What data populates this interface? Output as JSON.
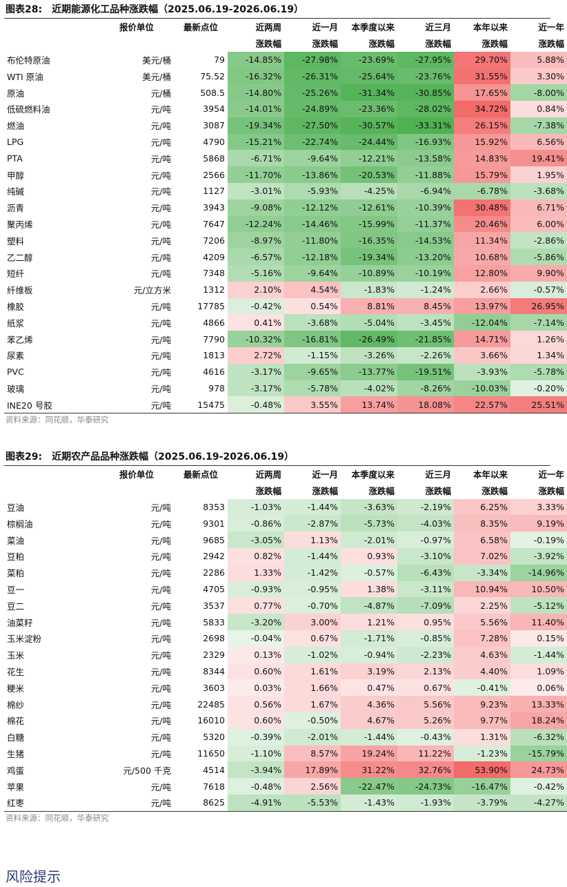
{
  "energy": {
    "label": "图表28:",
    "title": "近期能源化工品种涨跌幅（2025.06.19-2026.06.19）",
    "headers": {
      "unit": "报价单位",
      "point": "最新点位",
      "cols": [
        {
          "l1": "近两周",
          "l2": "涨跌幅"
        },
        {
          "l1": "近一月",
          "l2": "涨跌幅"
        },
        {
          "l1": "本季度以来",
          "l2": "涨跌幅"
        },
        {
          "l1": "近三月",
          "l2": "涨跌幅"
        },
        {
          "l1": "本年以来",
          "l2": "涨跌幅"
        },
        {
          "l1": "近一年",
          "l2": "涨跌幅"
        }
      ]
    },
    "rows": [
      {
        "name": "布伦特原油",
        "unit": "美元/桶",
        "point": "79",
        "v": [
          "-14.85%",
          "-27.98%",
          "-23.69%",
          "-27.95%",
          "29.70%",
          "5.88%"
        ]
      },
      {
        "name": "WTI 原油",
        "unit": "美元/桶",
        "point": "75.52",
        "v": [
          "-16.32%",
          "-26.31%",
          "-25.64%",
          "-23.76%",
          "31.55%",
          "3.30%"
        ]
      },
      {
        "name": "原油",
        "unit": "元/桶",
        "point": "508.5",
        "v": [
          "-14.80%",
          "-25.26%",
          "-31.34%",
          "-30.85%",
          "17.65%",
          "-8.00%"
        ]
      },
      {
        "name": "低硫燃料油",
        "unit": "元/吨",
        "point": "3954",
        "v": [
          "-14.01%",
          "-24.89%",
          "-23.36%",
          "-28.02%",
          "34.72%",
          "0.84%"
        ]
      },
      {
        "name": "燃油",
        "unit": "元/吨",
        "point": "3087",
        "v": [
          "-19.34%",
          "-27.50%",
          "-30.57%",
          "-33.31%",
          "26.15%",
          "-7.38%"
        ]
      },
      {
        "name": "LPG",
        "unit": "元/吨",
        "point": "4790",
        "v": [
          "-15.21%",
          "-22.74%",
          "-24.44%",
          "-16.93%",
          "15.92%",
          "6.56%"
        ]
      },
      {
        "name": "PTA",
        "unit": "元/吨",
        "point": "5868",
        "v": [
          "-6.71%",
          "-9.64%",
          "-12.21%",
          "-13.58%",
          "14.83%",
          "19.41%"
        ]
      },
      {
        "name": "甲醇",
        "unit": "元/吨",
        "point": "2566",
        "v": [
          "-11.70%",
          "-13.86%",
          "-20.53%",
          "-11.88%",
          "15.79%",
          "1.95%"
        ]
      },
      {
        "name": "纯碱",
        "unit": "元/吨",
        "point": "1127",
        "v": [
          "-3.01%",
          "-5.93%",
          "-4.25%",
          "-6.94%",
          "-6.78%",
          "-3.68%"
        ]
      },
      {
        "name": "沥青",
        "unit": "元/吨",
        "point": "3943",
        "v": [
          "-9.08%",
          "-12.12%",
          "-12.61%",
          "-10.39%",
          "30.48%",
          "6.71%"
        ]
      },
      {
        "name": "聚丙烯",
        "unit": "元/吨",
        "point": "7647",
        "v": [
          "-12.24%",
          "-14.46%",
          "-15.99%",
          "-11.37%",
          "20.46%",
          "6.00%"
        ]
      },
      {
        "name": "塑料",
        "unit": "元/吨",
        "point": "7206",
        "v": [
          "-8.97%",
          "-11.80%",
          "-16.35%",
          "-14.53%",
          "11.34%",
          "-2.86%"
        ]
      },
      {
        "name": "乙二醇",
        "unit": "元/吨",
        "point": "4209",
        "v": [
          "-6.57%",
          "-12.18%",
          "-19.34%",
          "-13.20%",
          "10.68%",
          "-5.86%"
        ]
      },
      {
        "name": "短纤",
        "unit": "元/吨",
        "point": "7348",
        "v": [
          "-5.16%",
          "-9.64%",
          "-10.89%",
          "-10.19%",
          "12.80%",
          "9.90%"
        ]
      },
      {
        "name": "纤维板",
        "unit": "元/立方米",
        "point": "1312",
        "v": [
          "2.10%",
          "4.54%",
          "-1.83%",
          "-1.24%",
          "2.66%",
          "-0.57%"
        ]
      },
      {
        "name": "橡胶",
        "unit": "元/吨",
        "point": "17785",
        "v": [
          "-0.42%",
          "0.54%",
          "8.81%",
          "8.45%",
          "13.97%",
          "26.95%"
        ]
      },
      {
        "name": "纸浆",
        "unit": "元/吨",
        "point": "4866",
        "v": [
          "0.41%",
          "-3.68%",
          "-5.04%",
          "-3.45%",
          "-12.04%",
          "-7.14%"
        ]
      },
      {
        "name": "苯乙烯",
        "unit": "元/吨",
        "point": "7790",
        "v": [
          "-10.32%",
          "-16.81%",
          "-26.49%",
          "-21.85%",
          "14.71%",
          "1.26%"
        ]
      },
      {
        "name": "尿素",
        "unit": "元/吨",
        "point": "1813",
        "v": [
          "2.72%",
          "-1.15%",
          "-3.26%",
          "-2.26%",
          "3.66%",
          "1.34%"
        ]
      },
      {
        "name": "PVC",
        "unit": "元/吨",
        "point": "4616",
        "v": [
          "-3.17%",
          "-9.65%",
          "-13.77%",
          "-19.51%",
          "-3.93%",
          "-5.78%"
        ]
      },
      {
        "name": "玻璃",
        "unit": "元/吨",
        "point": "978",
        "v": [
          "-3.17%",
          "-5.78%",
          "-4.02%",
          "-8.26%",
          "-10.03%",
          "-0.20%"
        ]
      },
      {
        "name": "INE20 号胶",
        "unit": "元/吨",
        "point": "15475",
        "v": [
          "-0.48%",
          "3.55%",
          "13.74%",
          "18.08%",
          "22.57%",
          "25.51%"
        ]
      }
    ],
    "source": "资料来源：同花顺，华泰研究"
  },
  "agri": {
    "label": "图表29:",
    "title": "近期农产品品种涨跌幅（2025.06.19-2026.06.19）",
    "headers": {
      "unit": "报价单位",
      "point": "最新点位",
      "cols": [
        {
          "l1": "近两周",
          "l2": "涨跌幅"
        },
        {
          "l1": "近一月",
          "l2": "涨跌幅"
        },
        {
          "l1": "本季度以来",
          "l2": "涨跌幅"
        },
        {
          "l1": "近三月",
          "l2": "涨跌幅"
        },
        {
          "l1": "本年以来",
          "l2": "涨跌幅"
        },
        {
          "l1": "近一年",
          "l2": "涨跌幅"
        }
      ]
    },
    "rows": [
      {
        "name": "豆油",
        "unit": "元/吨",
        "point": "8353",
        "v": [
          "-1.03%",
          "-1.44%",
          "-3.63%",
          "-2.19%",
          "6.25%",
          "3.33%"
        ]
      },
      {
        "name": "棕榈油",
        "unit": "元/吨",
        "point": "9301",
        "v": [
          "-0.86%",
          "-2.87%",
          "-5.73%",
          "-4.03%",
          "8.35%",
          "9.19%"
        ]
      },
      {
        "name": "菜油",
        "unit": "元/吨",
        "point": "9685",
        "v": [
          "-3.05%",
          "1.13%",
          "-2.01%",
          "-0.97%",
          "6.58%",
          "-0.19%"
        ]
      },
      {
        "name": "豆粕",
        "unit": "元/吨",
        "point": "2942",
        "v": [
          "0.82%",
          "-1.44%",
          "0.93%",
          "-3.10%",
          "7.02%",
          "-3.92%"
        ]
      },
      {
        "name": "菜粕",
        "unit": "元/吨",
        "point": "2286",
        "v": [
          "1.33%",
          "-1.42%",
          "-0.57%",
          "-6.43%",
          "-3.34%",
          "-14.96%"
        ]
      },
      {
        "name": "豆一",
        "unit": "元/吨",
        "point": "4705",
        "v": [
          "-0.93%",
          "-0.95%",
          "1.38%",
          "-3.11%",
          "10.94%",
          "10.50%"
        ]
      },
      {
        "name": "豆二",
        "unit": "元/吨",
        "point": "3537",
        "v": [
          "0.77%",
          "-0.70%",
          "-4.87%",
          "-7.09%",
          "2.25%",
          "-5.12%"
        ]
      },
      {
        "name": "油菜籽",
        "unit": "元/吨",
        "point": "5833",
        "v": [
          "-3.20%",
          "3.00%",
          "1.21%",
          "0.95%",
          "5.56%",
          "11.40%"
        ]
      },
      {
        "name": "玉米淀粉",
        "unit": "元/吨",
        "point": "2698",
        "v": [
          "-0.04%",
          "0.67%",
          "-1.71%",
          "-0.85%",
          "7.28%",
          "0.15%"
        ]
      },
      {
        "name": "玉米",
        "unit": "元/吨",
        "point": "2329",
        "v": [
          "0.13%",
          "-1.02%",
          "-0.94%",
          "-2.23%",
          "4.63%",
          "-1.44%"
        ]
      },
      {
        "name": "花生",
        "unit": "元/吨",
        "point": "8344",
        "v": [
          "0.60%",
          "1.61%",
          "3.19%",
          "2.13%",
          "4.40%",
          "1.09%"
        ]
      },
      {
        "name": "粳米",
        "unit": "元/吨",
        "point": "3603",
        "v": [
          "0.03%",
          "1.66%",
          "0.47%",
          "0.67%",
          "-0.41%",
          "0.06%"
        ]
      },
      {
        "name": "棉纱",
        "unit": "元/吨",
        "point": "22485",
        "v": [
          "0.56%",
          "1.67%",
          "4.36%",
          "5.56%",
          "9.23%",
          "13.33%"
        ]
      },
      {
        "name": "棉花",
        "unit": "元/吨",
        "point": "16010",
        "v": [
          "0.60%",
          "-0.50%",
          "4.67%",
          "5.26%",
          "9.77%",
          "18.24%"
        ]
      },
      {
        "name": "白糖",
        "unit": "元/吨",
        "point": "5320",
        "v": [
          "-0.39%",
          "-2.01%",
          "-1.44%",
          "-0.43%",
          "1.31%",
          "-6.32%"
        ]
      },
      {
        "name": "生猪",
        "unit": "元/吨",
        "point": "11650",
        "v": [
          "-1.10%",
          "8.57%",
          "19.24%",
          "11.22%",
          "-1.23%",
          "-15.79%"
        ]
      },
      {
        "name": "鸡蛋",
        "unit": "元/500 千克",
        "point": "4514",
        "v": [
          "-3.94%",
          "17.89%",
          "31.22%",
          "32.76%",
          "53.90%",
          "24.73%"
        ]
      },
      {
        "name": "苹果",
        "unit": "元/吨",
        "point": "7618",
        "v": [
          "-0.48%",
          "2.56%",
          "-22.47%",
          "-24.73%",
          "-16.47%",
          "-0.42%"
        ]
      },
      {
        "name": "红枣",
        "unit": "元/吨",
        "point": "8625",
        "v": [
          "-4.91%",
          "-5.53%",
          "-1.43%",
          "-1.93%",
          "-3.79%",
          "-4.27%"
        ]
      }
    ],
    "source": "资料来源：同花顺，华泰研究"
  },
  "risk_heading": "风险提示",
  "colors": {
    "positive": "#f26a6a",
    "negative": "#4caf50"
  }
}
